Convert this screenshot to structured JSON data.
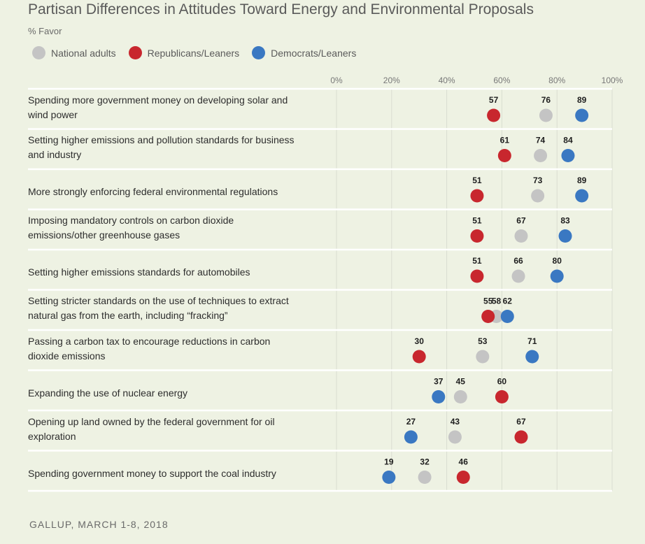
{
  "title": "Partisan Differences in Attitudes Toward Energy and Environmental Proposals",
  "subtitle": "% Favor",
  "source": "GALLUP, MARCH 1-8, 2018",
  "colors": {
    "national": "#c4c4c4",
    "republicans": "#c8272e",
    "democrats": "#3a78c2",
    "background": "#eef2e3"
  },
  "chart_data": {
    "type": "scatter",
    "title": "Partisan Differences in Attitudes Toward Energy and Environmental Proposals",
    "xlabel": "",
    "ylabel": "",
    "xlim": [
      0,
      100
    ],
    "x_ticks": [
      "0%",
      "20%",
      "40%",
      "60%",
      "80%",
      "100%"
    ],
    "grid": true,
    "legend_position": "top-left",
    "categories": [
      "Spending more government money on developing solar and wind power",
      "Setting higher emissions and pollution standards for business and industry",
      "More strongly enforcing federal environmental regulations",
      "Imposing mandatory controls on carbon dioxide emissions/other greenhouse gases",
      "Setting higher emissions standards for automobiles",
      "Setting stricter standards on the use of techniques to extract natural gas from the earth, including “fracking”",
      "Passing a carbon tax to encourage reductions in carbon dioxide emissions",
      "Expanding the use of nuclear energy",
      "Opening up land owned by the federal government for oil exploration",
      "Spending government money to support the coal industry"
    ],
    "series": [
      {
        "name": "National adults",
        "color": "#c4c4c4",
        "values": [
          76,
          74,
          73,
          67,
          66,
          58,
          53,
          45,
          43,
          32
        ]
      },
      {
        "name": "Republicans/Leaners",
        "color": "#c8272e",
        "values": [
          57,
          61,
          51,
          51,
          51,
          55,
          30,
          60,
          67,
          46
        ]
      },
      {
        "name": "Democrats/Leaners",
        "color": "#3a78c2",
        "values": [
          89,
          84,
          89,
          83,
          80,
          62,
          71,
          37,
          27,
          19
        ]
      }
    ],
    "row_label_lines": [
      [
        "Spending more government money on developing solar and",
        "wind power"
      ],
      [
        "Setting higher emissions and pollution standards for business",
        "and industry"
      ],
      [
        "More strongly enforcing federal environmental regulations"
      ],
      [
        "Imposing mandatory controls on carbon dioxide",
        "emissions/other greenhouse gases"
      ],
      [
        "Setting higher emissions standards for automobiles"
      ],
      [
        "Setting stricter standards on the use of techniques to extract",
        "natural gas from the earth, including “fracking”"
      ],
      [
        "Passing a carbon tax to encourage reductions in carbon",
        "dioxide emissions"
      ],
      [
        "Expanding the use of nuclear energy"
      ],
      [
        "Opening up land owned by the federal government for oil",
        "exploration"
      ],
      [
        "Spending government money to support the coal industry"
      ]
    ]
  }
}
